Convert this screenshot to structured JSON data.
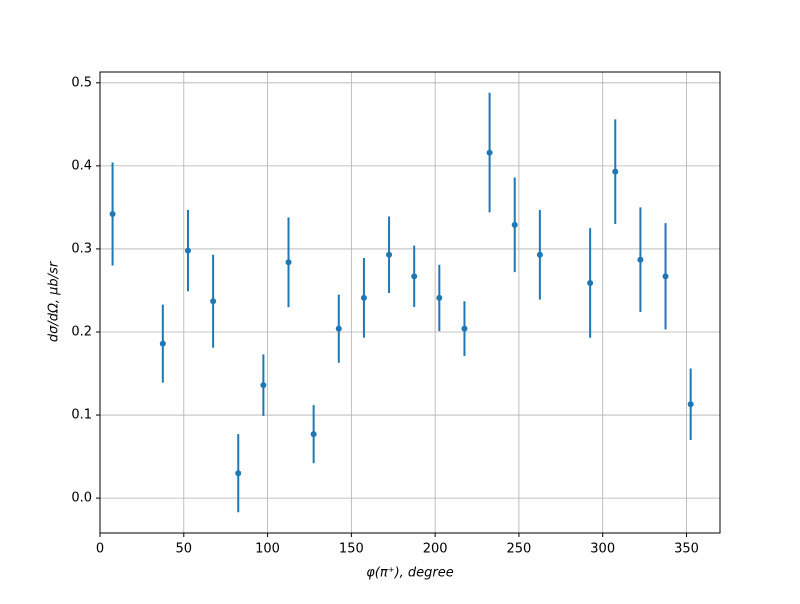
{
  "chart_data": {
    "type": "errorbar",
    "xlabel": "φ(π⁺), degree",
    "ylabel": "dσ/dΩ, μb/sr",
    "x": [
      7.5,
      37.5,
      52.5,
      67.5,
      82.5,
      97.5,
      112.5,
      127.5,
      142.5,
      157.5,
      172.5,
      187.5,
      202.5,
      217.5,
      232.5,
      247.5,
      262.5,
      292.5,
      307.5,
      322.5,
      337.5,
      352.5
    ],
    "values": [
      0.342,
      0.186,
      0.298,
      0.237,
      0.03,
      0.136,
      0.284,
      0.077,
      0.204,
      0.241,
      0.293,
      0.267,
      0.241,
      0.204,
      0.416,
      0.329,
      0.293,
      0.259,
      0.393,
      0.287,
      0.267,
      0.113
    ],
    "errors": [
      0.062,
      0.047,
      0.049,
      0.056,
      0.047,
      0.037,
      0.054,
      0.035,
      0.041,
      0.048,
      0.046,
      0.037,
      0.04,
      0.033,
      0.072,
      0.057,
      0.054,
      0.066,
      0.063,
      0.063,
      0.064,
      0.043
    ],
    "color": "#1f77b4",
    "xlim": [
      0,
      370
    ],
    "ylim": [
      -0.042,
      0.513
    ],
    "xticks": [
      0,
      50,
      100,
      150,
      200,
      250,
      300,
      350
    ],
    "yticks": [
      {
        "value": 0,
        "label": "0.0"
      },
      0.1,
      0.2,
      0.3,
      0.4,
      0.5
    ],
    "grid": true
  }
}
